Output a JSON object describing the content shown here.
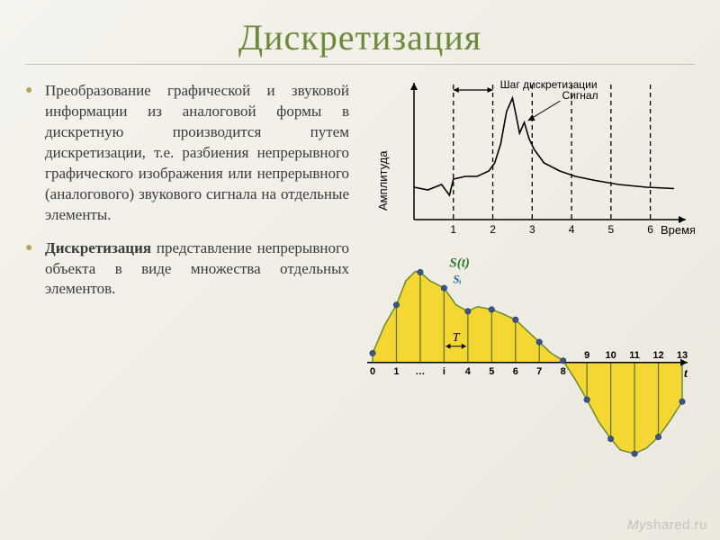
{
  "title": "Дискретизация",
  "bullets": [
    {
      "text": "Преобразование графической и звуковой информации из аналоговой формы в дискретную производится путем дискретизации, т.е. разбиения непрерывного графического изображения или непрерывного (аналогового) звукового сигнала на отдельные элементы."
    },
    {
      "bold_prefix": "Дискретизация",
      "text": " представление непрерывного объекта в виде множества отдельных элементов."
    }
  ],
  "chart1": {
    "type": "line",
    "y_axis_label": "Амплитуда",
    "x_axis_label": "Время",
    "annotation_step": "Шаг дискретизации",
    "annotation_signal": "Сигнал",
    "x_ticks": [
      1,
      2,
      3,
      4,
      5,
      6
    ],
    "xlim": [
      0,
      6.9
    ],
    "ylim": [
      0,
      100
    ],
    "signal_points": [
      [
        0.0,
        24
      ],
      [
        0.35,
        22
      ],
      [
        0.7,
        26
      ],
      [
        0.9,
        18
      ],
      [
        1.0,
        30
      ],
      [
        1.3,
        32
      ],
      [
        1.6,
        32
      ],
      [
        1.9,
        36
      ],
      [
        2.05,
        42
      ],
      [
        2.2,
        56
      ],
      [
        2.35,
        80
      ],
      [
        2.5,
        90
      ],
      [
        2.6,
        76
      ],
      [
        2.68,
        64
      ],
      [
        2.8,
        72
      ],
      [
        2.92,
        60
      ],
      [
        3.05,
        52
      ],
      [
        3.3,
        42
      ],
      [
        3.7,
        36
      ],
      [
        4.1,
        32
      ],
      [
        4.6,
        29
      ],
      [
        5.2,
        26
      ],
      [
        5.9,
        24
      ],
      [
        6.6,
        23
      ]
    ],
    "dash_lines_x": [
      1,
      2,
      3,
      4,
      5,
      6
    ],
    "colors": {
      "axis": "#000000",
      "signal": "#000000",
      "dash": "#000000",
      "text": "#000000",
      "background": "transparent"
    },
    "line_width": 1.6,
    "font_size_label": 13,
    "font_size_tick": 12
  },
  "chart2": {
    "type": "area",
    "label_st": "S(t)",
    "label_si": "Sᵢ",
    "label_T": "T",
    "x_axis_label": "t",
    "x_ticks_labels": [
      "0",
      "1",
      "…",
      "i",
      "4",
      "5",
      "6",
      "7",
      "8",
      "9",
      "10",
      "11",
      "12",
      "13"
    ],
    "sample_count": 14,
    "samples": [
      0.1,
      0.62,
      0.97,
      0.8,
      0.55,
      0.57,
      0.46,
      0.22,
      0.02,
      -0.4,
      -0.82,
      -0.98,
      -0.8,
      -0.42
    ],
    "curve_points": [
      [
        0.0,
        0.1
      ],
      [
        0.5,
        0.4
      ],
      [
        1.0,
        0.62
      ],
      [
        1.4,
        0.88
      ],
      [
        1.8,
        0.98
      ],
      [
        2.0,
        0.97
      ],
      [
        2.4,
        0.88
      ],
      [
        3.0,
        0.8
      ],
      [
        3.5,
        0.62
      ],
      [
        4.0,
        0.55
      ],
      [
        4.4,
        0.6
      ],
      [
        5.0,
        0.57
      ],
      [
        5.5,
        0.52
      ],
      [
        6.0,
        0.46
      ],
      [
        6.5,
        0.34
      ],
      [
        7.0,
        0.22
      ],
      [
        7.5,
        0.1
      ],
      [
        8.0,
        0.02
      ],
      [
        8.5,
        -0.18
      ],
      [
        9.0,
        -0.4
      ],
      [
        9.5,
        -0.64
      ],
      [
        10.0,
        -0.82
      ],
      [
        10.4,
        -0.94
      ],
      [
        11.0,
        -0.98
      ],
      [
        11.5,
        -0.92
      ],
      [
        12.0,
        -0.8
      ],
      [
        12.5,
        -0.62
      ],
      [
        13.0,
        -0.42
      ]
    ],
    "colors": {
      "fill": "#f5d733",
      "curve": "#6a8a2a",
      "sample_line": "#5f7a28",
      "sample_dot": "#3a5588",
      "axis": "#000000",
      "text_st": "#2b7a2b",
      "text_si": "#2b6aa8",
      "text_axis": "#000000",
      "text_T": "#000000"
    },
    "dot_radius": 3.2,
    "line_width": 1.5,
    "font_size_st": 15,
    "font_size_tick": 11
  },
  "watermark": {
    "prefix": "My",
    "suffix": "shared.ru"
  }
}
